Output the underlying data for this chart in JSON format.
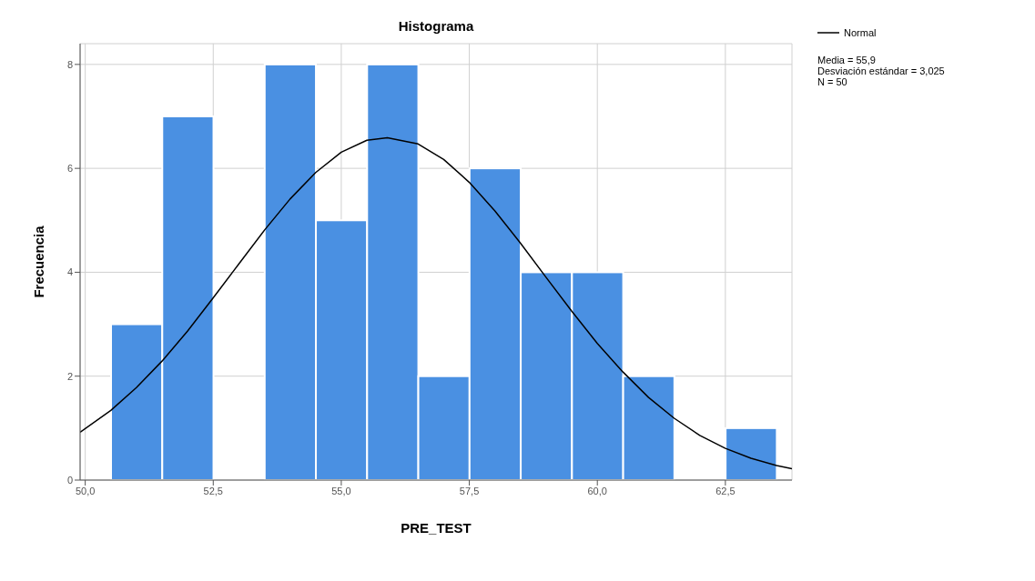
{
  "chart_data": {
    "type": "histogram",
    "title": "Histograma",
    "xlabel": "PRE_TEST",
    "ylabel": "Frecuencia",
    "bins": [
      50.5,
      51.5,
      52.5,
      53.5,
      54.5,
      55.5,
      56.5,
      57.5,
      58.5,
      59.5,
      60.5,
      61.5,
      62.5,
      63.5
    ],
    "values": [
      3,
      7,
      0,
      8,
      5,
      8,
      2,
      6,
      4,
      4,
      2,
      0,
      1
    ],
    "color": "#4a90e2",
    "series": [
      {
        "name": "Normal",
        "type": "line",
        "color": "#000000",
        "x": [
          49.9,
          50.5,
          51,
          51.5,
          52,
          52.5,
          53,
          53.5,
          54,
          54.5,
          55,
          55.5,
          55.9,
          56.5,
          57,
          57.5,
          58,
          58.5,
          59,
          59.5,
          60,
          60.5,
          61,
          61.5,
          62,
          62.5,
          63,
          63.5,
          63.8
        ],
        "values": [
          0.92,
          1.34,
          1.78,
          2.29,
          2.87,
          3.51,
          4.16,
          4.81,
          5.41,
          5.92,
          6.31,
          6.54,
          6.59,
          6.47,
          6.17,
          5.73,
          5.18,
          4.56,
          3.9,
          3.25,
          2.63,
          2.08,
          1.59,
          1.19,
          0.86,
          0.61,
          0.42,
          0.28,
          0.22
        ]
      }
    ],
    "xlim": [
      49.9,
      63.8
    ],
    "xticks": [
      {
        "value": 50,
        "label": "50,0"
      },
      {
        "value": 52.5,
        "label": "52,5"
      },
      {
        "value": 55,
        "label": "55,0"
      },
      {
        "value": 57.5,
        "label": "57,5"
      },
      {
        "value": 60,
        "label": "60,0"
      },
      {
        "value": 62.5,
        "label": "62,5"
      }
    ],
    "ylim": [
      0,
      8.4
    ],
    "yticks": [
      0,
      2,
      4,
      6,
      8
    ],
    "grid": true,
    "legend": "top right",
    "annotations": [
      "Media = 55,9",
      "Desviación estándar = 3,025",
      "N = 50"
    ]
  }
}
